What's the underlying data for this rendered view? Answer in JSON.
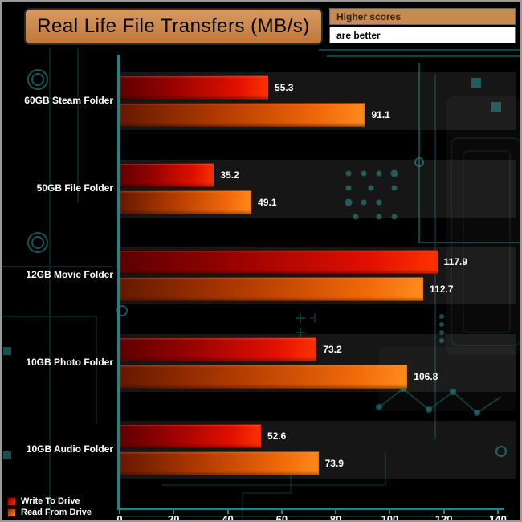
{
  "title": "Real Life File Transfers (MB/s)",
  "note_top": "Higher scores",
  "note_bottom": "are better",
  "legend": [
    {
      "label": "Write To  Drive",
      "color": "#e01000"
    },
    {
      "label": "Read From  Drive",
      "color": "#f26a0a"
    }
  ],
  "colors": {
    "header_tan": "#c98a4e",
    "bar_write_red": "#e01000",
    "bar_read_orange": "#f26a0a",
    "circuit_teal": "#1f8585",
    "axis_teal": "#2a8080",
    "text_white": "#ffffff"
  },
  "chart_data": {
    "type": "bar",
    "orientation": "horizontal",
    "title": "Real Life File Transfers (MB/s)",
    "categories": [
      "60GB Steam Folder",
      "50GB File Folder",
      "12GB Movie Folder",
      "10GB Photo Folder",
      "10GB Audio Folder"
    ],
    "series": [
      {
        "name": "Write To  Drive",
        "values": [
          55.3,
          35.2,
          117.9,
          73.2,
          52.6
        ]
      },
      {
        "name": "Read From  Drive",
        "values": [
          91.1,
          49.1,
          112.7,
          106.8,
          73.9
        ]
      }
    ],
    "xlabel": "",
    "ylabel": "",
    "xlim": [
      0,
      140
    ],
    "xticks": [
      0,
      20,
      40,
      60,
      80,
      100,
      120,
      140
    ],
    "grid": false,
    "legend_position": "bottom-left"
  }
}
